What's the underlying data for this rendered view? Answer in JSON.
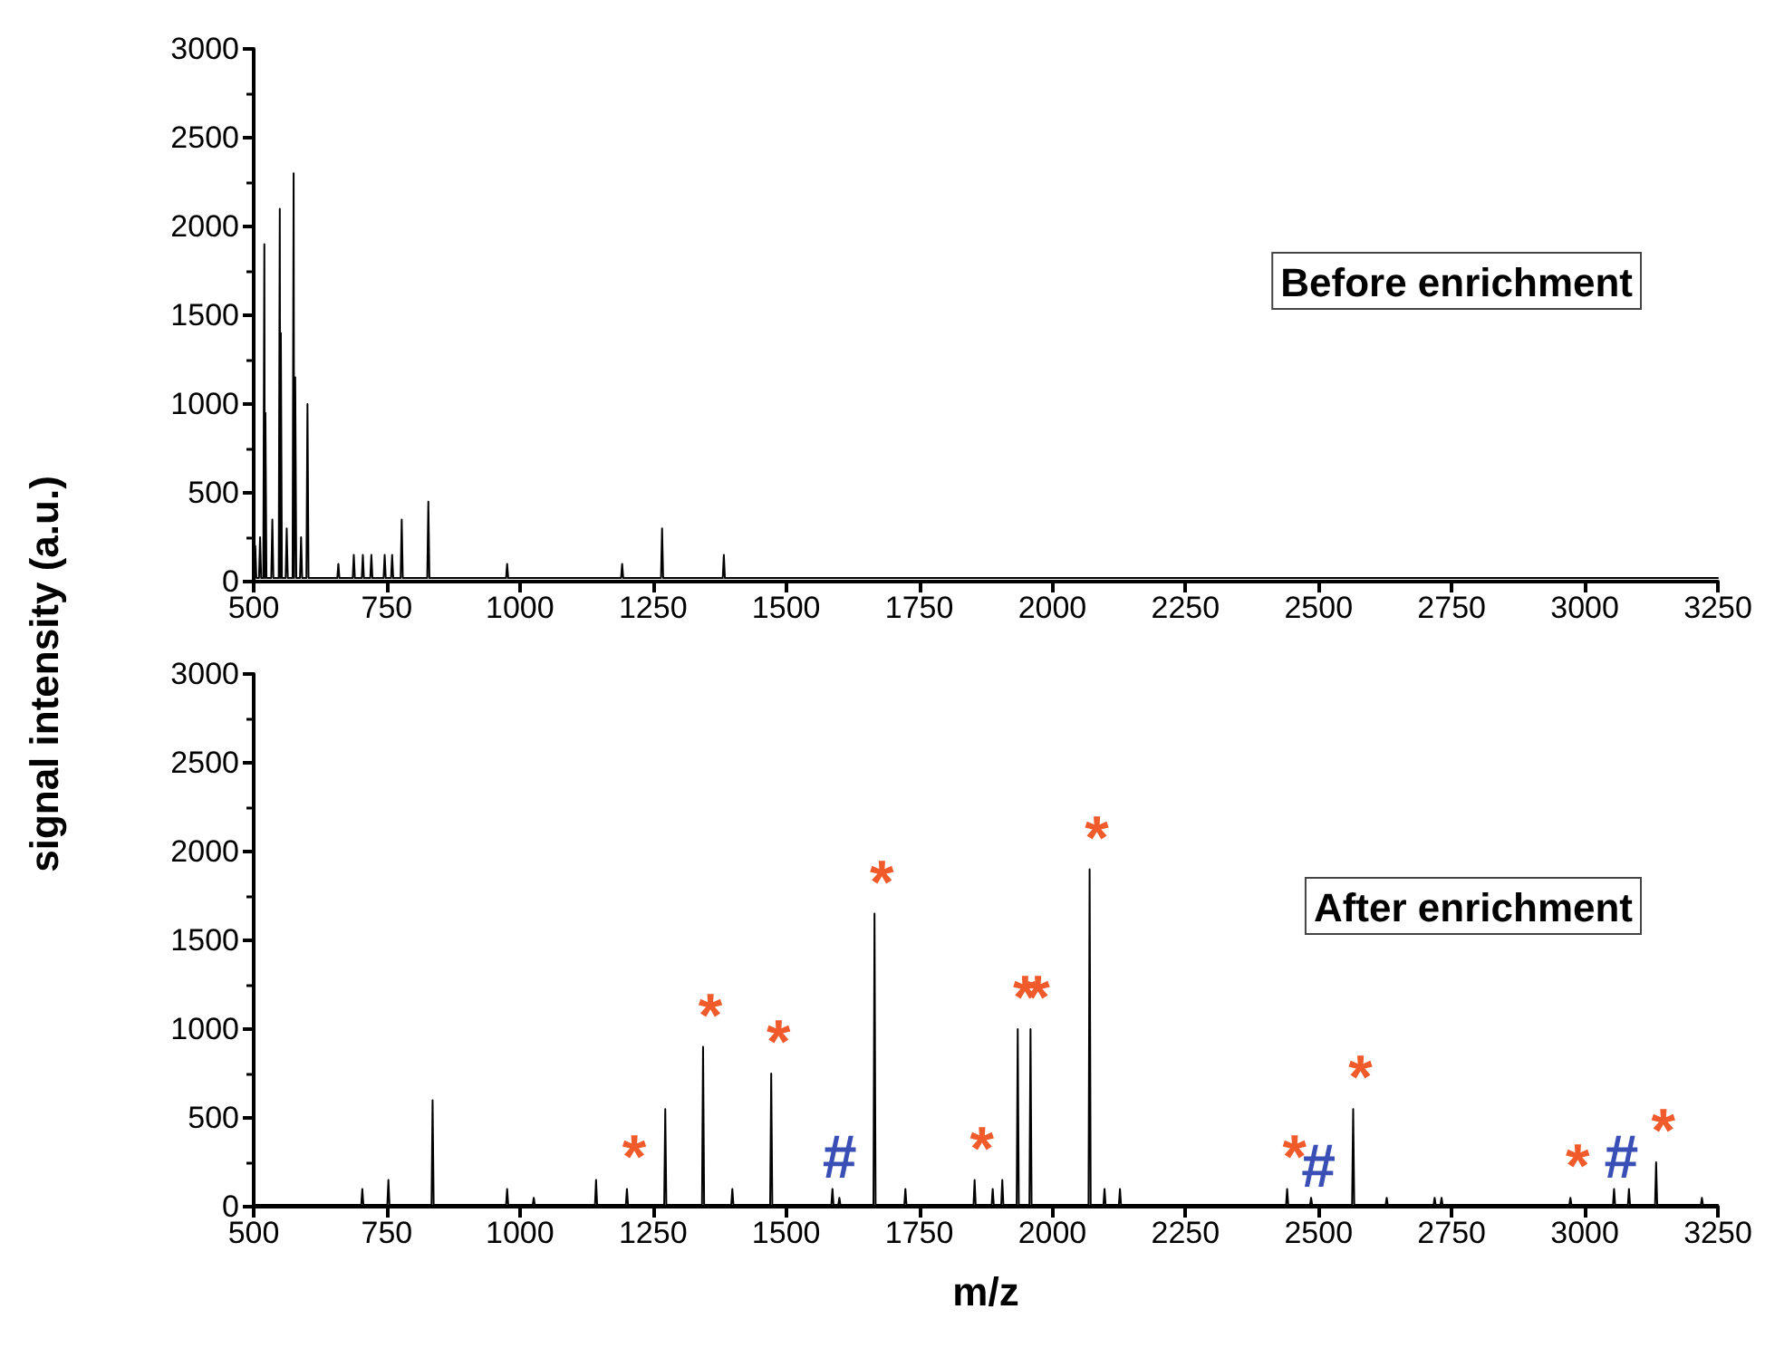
{
  "chart_data": [
    {
      "type": "line",
      "ylabel": "signal intensity (a.u.)",
      "annotations": [
        "Before enrichment"
      ],
      "xlim": [
        500,
        3250
      ],
      "xticks": [
        500,
        750,
        1000,
        1250,
        1500,
        1750,
        2000,
        2250,
        2500,
        2750,
        3000,
        3250
      ],
      "ylim": [
        0,
        3000
      ],
      "yticks": [
        0,
        500,
        1000,
        1500,
        2000,
        2500,
        3000
      ],
      "marker": "none",
      "line_style": "solid",
      "series": [
        {
          "color": "#000000",
          "x": [
            500,
            503,
            505,
            510,
            512,
            514,
            518,
            520,
            521,
            522,
            524,
            533,
            535,
            537,
            547,
            549,
            550,
            551,
            553,
            560,
            562,
            564,
            573,
            575,
            576,
            578,
            580,
            587,
            589,
            591,
            599,
            601,
            603,
            657,
            659,
            661,
            686,
            688,
            690,
            703,
            705,
            707,
            719,
            721,
            723,
            744,
            746,
            748,
            758,
            760,
            762,
            776,
            778,
            780,
            826,
            828,
            830,
            974,
            976,
            978,
            1190,
            1192,
            1194,
            1265,
            1267,
            1269,
            1381,
            1383,
            1385,
            3250
          ],
          "values": [
            20,
            200,
            20,
            20,
            250,
            20,
            20,
            1900,
            20,
            950,
            20,
            20,
            350,
            20,
            20,
            2100,
            20,
            1400,
            20,
            20,
            300,
            20,
            20,
            2300,
            20,
            1150,
            20,
            20,
            250,
            20,
            20,
            1000,
            20,
            20,
            100,
            20,
            20,
            150,
            20,
            20,
            150,
            20,
            20,
            150,
            20,
            20,
            150,
            20,
            20,
            150,
            20,
            20,
            350,
            20,
            20,
            450,
            20,
            20,
            100,
            20,
            20,
            100,
            20,
            20,
            300,
            20,
            20,
            150,
            20,
            20
          ]
        }
      ]
    },
    {
      "type": "line",
      "xlabel": "m/z",
      "annotations": [
        "After enrichment",
        {
          "text": "*",
          "x": 1201,
          "y": 100
        },
        {
          "text": "*",
          "x": 1344,
          "y": 900
        },
        {
          "text": "*",
          "x": 1472,
          "y": 750
        },
        {
          "text": "#",
          "x": 1587,
          "y": 100
        },
        {
          "text": "*",
          "x": 1666,
          "y": 1650
        },
        {
          "text": "*",
          "x": 1854,
          "y": 150
        },
        {
          "text": "*",
          "x": 1935,
          "y": 1000
        },
        {
          "text": "*",
          "x": 1959,
          "y": 1000
        },
        {
          "text": "*",
          "x": 2070,
          "y": 1900
        },
        {
          "text": "*",
          "x": 2441,
          "y": 100
        },
        {
          "text": "#",
          "x": 2486,
          "y": 50
        },
        {
          "text": "*",
          "x": 2565,
          "y": 550
        },
        {
          "text": "*",
          "x": 2973,
          "y": 50
        },
        {
          "text": "#",
          "x": 3055,
          "y": 100
        },
        {
          "text": "*",
          "x": 3134,
          "y": 250
        }
      ],
      "xlim": [
        500,
        3250
      ],
      "xticks": [
        500,
        750,
        1000,
        1250,
        1500,
        1750,
        2000,
        2250,
        2500,
        2750,
        3000,
        3250
      ],
      "ylim": [
        0,
        3000
      ],
      "yticks": [
        0,
        500,
        1000,
        1500,
        2000,
        2500,
        3000
      ],
      "marker": "none",
      "line_style": "solid",
      "series": [
        {
          "color": "#000000",
          "x": [
            500,
            702,
            704,
            706,
            751,
            753,
            755,
            834,
            836,
            838,
            974,
            976,
            978,
            1024,
            1026,
            1028,
            1141,
            1143,
            1145,
            1199,
            1201,
            1203,
            1271,
            1273,
            1275,
            1342,
            1344,
            1346,
            1397,
            1399,
            1401,
            1470,
            1472,
            1474,
            1585,
            1587,
            1589,
            1598,
            1600,
            1602,
            1664,
            1666,
            1668,
            1722,
            1724,
            1726,
            1852,
            1854,
            1856,
            1886,
            1888,
            1890,
            1904,
            1906,
            1908,
            1933,
            1935,
            1937,
            1957,
            1959,
            1961,
            2068,
            2070,
            2072,
            2096,
            2098,
            2100,
            2125,
            2127,
            2129,
            2439,
            2441,
            2443,
            2484,
            2486,
            2488,
            2563,
            2565,
            2567,
            2626,
            2628,
            2630,
            2716,
            2718,
            2720,
            2729,
            2731,
            2733,
            2971,
            2973,
            2975,
            3053,
            3055,
            3057,
            3081,
            3083,
            3085,
            3132,
            3134,
            3136,
            3218,
            3220,
            3222,
            3250
          ],
          "values": [
            10,
            10,
            100,
            10,
            10,
            150,
            10,
            10,
            600,
            10,
            10,
            100,
            10,
            10,
            50,
            10,
            10,
            150,
            10,
            10,
            100,
            10,
            10,
            550,
            10,
            10,
            900,
            10,
            10,
            100,
            10,
            10,
            750,
            10,
            10,
            100,
            10,
            10,
            50,
            10,
            10,
            1650,
            10,
            10,
            100,
            10,
            10,
            150,
            10,
            10,
            100,
            10,
            10,
            150,
            10,
            10,
            1000,
            10,
            10,
            1000,
            10,
            10,
            1900,
            10,
            10,
            100,
            10,
            10,
            100,
            10,
            10,
            100,
            10,
            10,
            50,
            10,
            10,
            550,
            10,
            10,
            50,
            10,
            10,
            50,
            10,
            10,
            50,
            10,
            10,
            50,
            10,
            10,
            100,
            10,
            10,
            100,
            10,
            10,
            250,
            10,
            10,
            50,
            10,
            10
          ]
        }
      ]
    }
  ]
}
